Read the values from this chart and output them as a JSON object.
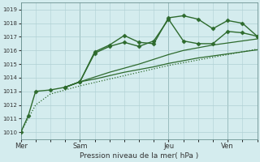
{
  "background_color": "#d4ecee",
  "grid_color": "#b0d0d4",
  "line_color": "#2d6a2d",
  "xlabel_text": "Pression niveau de la mer( hPa )",
  "ylim": [
    1009.5,
    1019.5
  ],
  "yticks": [
    1010,
    1011,
    1012,
    1013,
    1014,
    1015,
    1016,
    1017,
    1018,
    1019
  ],
  "xtick_labels": [
    "Mer",
    "Sam",
    "Jeu",
    "Ven"
  ],
  "xtick_pos": [
    0,
    4,
    10,
    14
  ],
  "xlim": [
    0,
    16
  ],
  "vlines": [
    0,
    4,
    10,
    14
  ],
  "series": [
    {
      "x": [
        0,
        0.5,
        1,
        2,
        3,
        4,
        5,
        6,
        7,
        8,
        9,
        10,
        11,
        12,
        13,
        14,
        15,
        16
      ],
      "y": [
        1010.0,
        1011.2,
        1013.0,
        1013.1,
        1013.3,
        1013.7,
        1015.9,
        1016.4,
        1017.1,
        1016.6,
        1016.5,
        1018.4,
        1018.55,
        1018.3,
        1017.6,
        1018.2,
        1018.0,
        1017.05
      ],
      "style": "-",
      "marker": "D",
      "markersize": 2.5,
      "linewidth": 1.0,
      "zorder": 4
    },
    {
      "x": [
        3,
        4,
        5,
        6,
        7,
        8,
        9,
        10,
        11,
        12,
        13,
        14,
        15,
        16
      ],
      "y": [
        1013.3,
        1013.7,
        1015.8,
        1016.3,
        1016.6,
        1016.3,
        1016.7,
        1018.3,
        1016.7,
        1016.5,
        1016.5,
        1017.4,
        1017.3,
        1017.05
      ],
      "style": "-",
      "marker": "D",
      "markersize": 2.5,
      "linewidth": 1.0,
      "zorder": 4
    },
    {
      "x": [
        3,
        4,
        5,
        6,
        7,
        8,
        9,
        10,
        11,
        12,
        13,
        14,
        15,
        16
      ],
      "y": [
        1013.3,
        1013.7,
        1014.05,
        1014.4,
        1014.7,
        1015.0,
        1015.35,
        1015.7,
        1016.0,
        1016.2,
        1016.4,
        1016.55,
        1016.7,
        1016.85
      ],
      "style": "-",
      "marker": null,
      "markersize": 0,
      "linewidth": 0.9,
      "zorder": 3
    },
    {
      "x": [
        3,
        4,
        5,
        6,
        7,
        8,
        9,
        10,
        11,
        12,
        13,
        14,
        15,
        16
      ],
      "y": [
        1013.3,
        1013.7,
        1013.9,
        1014.15,
        1014.4,
        1014.6,
        1014.8,
        1015.05,
        1015.25,
        1015.45,
        1015.6,
        1015.75,
        1015.9,
        1016.05
      ],
      "style": "-",
      "marker": null,
      "markersize": 0,
      "linewidth": 0.9,
      "zorder": 3
    },
    {
      "x": [
        0,
        0.5,
        1,
        2,
        3,
        4,
        5,
        6,
        7,
        8,
        9,
        10,
        11,
        12,
        13,
        14,
        15,
        16
      ],
      "y": [
        1010.0,
        1011.0,
        1012.0,
        1012.8,
        1013.1,
        1013.4,
        1013.65,
        1013.9,
        1014.15,
        1014.4,
        1014.65,
        1014.9,
        1015.1,
        1015.3,
        1015.5,
        1015.7,
        1015.9,
        1016.1
      ],
      "style": ":",
      "marker": null,
      "markersize": 0,
      "linewidth": 0.9,
      "zorder": 2
    }
  ]
}
